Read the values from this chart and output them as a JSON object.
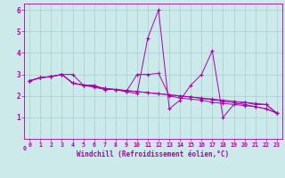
{
  "xlabel": "Windchill (Refroidissement éolien,°C)",
  "xlim": [
    -0.5,
    23.5
  ],
  "ylim": [
    0,
    6.3
  ],
  "xticks": [
    0,
    1,
    2,
    3,
    4,
    5,
    6,
    7,
    8,
    9,
    10,
    11,
    12,
    13,
    14,
    15,
    16,
    17,
    18,
    19,
    20,
    21,
    22,
    23
  ],
  "yticks": [
    1,
    2,
    3,
    4,
    5,
    6
  ],
  "bg_color": "#cceaea",
  "line_color": "#aa00aa",
  "grid_color": "#aacccc",
  "series": [
    [
      2.7,
      2.85,
      2.9,
      3.0,
      3.0,
      2.5,
      2.4,
      2.3,
      2.3,
      2.2,
      2.1,
      4.7,
      6.0,
      1.4,
      1.8,
      2.5,
      3.0,
      4.1,
      1.0,
      1.6,
      1.7,
      1.6,
      1.6,
      1.2
    ],
    [
      2.7,
      2.85,
      2.9,
      3.0,
      2.6,
      2.5,
      2.5,
      2.3,
      2.3,
      2.2,
      3.0,
      3.0,
      3.05,
      2.0,
      1.9,
      1.85,
      1.8,
      1.7,
      1.65,
      1.6,
      1.55,
      1.5,
      1.4,
      1.2
    ],
    [
      2.7,
      2.85,
      2.9,
      3.0,
      2.6,
      2.5,
      2.45,
      2.35,
      2.3,
      2.25,
      2.2,
      2.15,
      2.1,
      2.05,
      2.0,
      1.95,
      1.9,
      1.85,
      1.8,
      1.75,
      1.7,
      1.65,
      1.6,
      1.2
    ],
    [
      2.7,
      2.85,
      2.9,
      3.0,
      2.6,
      2.5,
      2.45,
      2.35,
      2.3,
      2.25,
      2.2,
      2.15,
      2.1,
      2.05,
      2.0,
      1.95,
      1.88,
      1.82,
      1.75,
      1.68,
      1.6,
      1.5,
      1.4,
      1.2
    ]
  ]
}
